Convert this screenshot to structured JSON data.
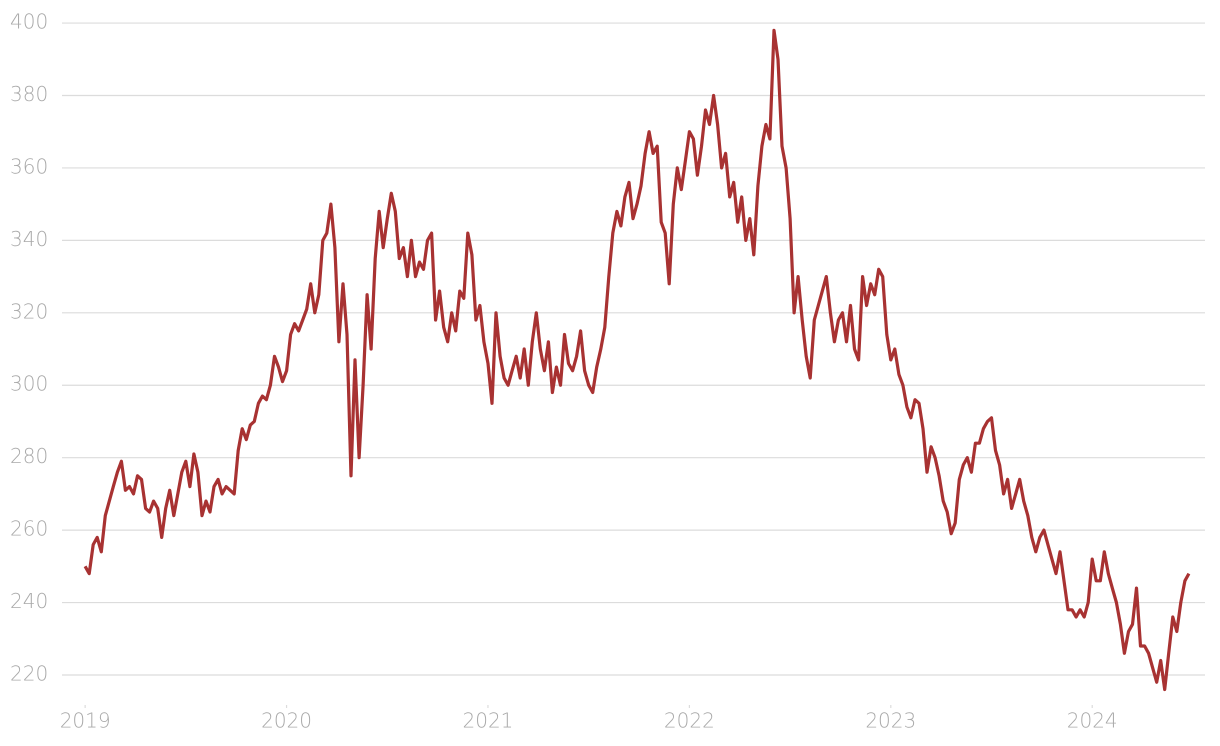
{
  "chart_data": {
    "type": "line",
    "x": [
      2019.0,
      2019.02,
      2019.04,
      2019.06,
      2019.08,
      2019.1,
      2019.12,
      2019.14,
      2019.16,
      2019.18,
      2019.2,
      2019.22,
      2019.24,
      2019.26,
      2019.28,
      2019.3,
      2019.32,
      2019.34,
      2019.36,
      2019.38,
      2019.4,
      2019.42,
      2019.44,
      2019.46,
      2019.48,
      2019.5,
      2019.52,
      2019.54,
      2019.56,
      2019.58,
      2019.6,
      2019.62,
      2019.64,
      2019.66,
      2019.68,
      2019.7,
      2019.72,
      2019.74,
      2019.76,
      2019.78,
      2019.8,
      2019.82,
      2019.84,
      2019.86,
      2019.88,
      2019.9,
      2019.92,
      2019.94,
      2019.96,
      2019.98,
      2020.0,
      2020.02,
      2020.04,
      2020.06,
      2020.08,
      2020.1,
      2020.12,
      2020.14,
      2020.16,
      2020.18,
      2020.2,
      2020.22,
      2020.24,
      2020.26,
      2020.28,
      2020.3,
      2020.32,
      2020.34,
      2020.36,
      2020.38,
      2020.4,
      2020.42,
      2020.44,
      2020.46,
      2020.48,
      2020.5,
      2020.52,
      2020.54,
      2020.56,
      2020.58,
      2020.6,
      2020.62,
      2020.64,
      2020.66,
      2020.68,
      2020.7,
      2020.72,
      2020.74,
      2020.76,
      2020.78,
      2020.8,
      2020.82,
      2020.84,
      2020.86,
      2020.88,
      2020.9,
      2020.92,
      2020.94,
      2020.96,
      2020.98,
      2021.0,
      2021.02,
      2021.04,
      2021.06,
      2021.08,
      2021.1,
      2021.12,
      2021.14,
      2021.16,
      2021.18,
      2021.2,
      2021.22,
      2021.24,
      2021.26,
      2021.28,
      2021.3,
      2021.32,
      2021.34,
      2021.36,
      2021.38,
      2021.4,
      2021.42,
      2021.44,
      2021.46,
      2021.48,
      2021.5,
      2021.52,
      2021.54,
      2021.56,
      2021.58,
      2021.6,
      2021.62,
      2021.64,
      2021.66,
      2021.68,
      2021.7,
      2021.72,
      2021.74,
      2021.76,
      2021.78,
      2021.8,
      2021.82,
      2021.84,
      2021.86,
      2021.88,
      2021.9,
      2021.92,
      2021.94,
      2021.96,
      2021.98,
      2022.0,
      2022.02,
      2022.04,
      2022.06,
      2022.08,
      2022.1,
      2022.12,
      2022.14,
      2022.16,
      2022.18,
      2022.2,
      2022.22,
      2022.24,
      2022.26,
      2022.28,
      2022.3,
      2022.32,
      2022.34,
      2022.36,
      2022.38,
      2022.4,
      2022.42,
      2022.44,
      2022.46,
      2022.48,
      2022.5,
      2022.52,
      2022.54,
      2022.56,
      2022.58,
      2022.6,
      2022.62,
      2022.64,
      2022.66,
      2022.68,
      2022.7,
      2022.72,
      2022.74,
      2022.76,
      2022.78,
      2022.8,
      2022.82,
      2022.84,
      2022.86,
      2022.88,
      2022.9,
      2022.92,
      2022.94,
      2022.96,
      2022.98,
      2023.0,
      2023.02,
      2023.04,
      2023.06,
      2023.08,
      2023.1,
      2023.12,
      2023.14,
      2023.16,
      2023.18,
      2023.2,
      2023.22,
      2023.24,
      2023.26,
      2023.28,
      2023.3,
      2023.32,
      2023.34,
      2023.36,
      2023.38,
      2023.4,
      2023.42,
      2023.44,
      2023.46,
      2023.48,
      2023.5,
      2023.52,
      2023.54,
      2023.56,
      2023.58,
      2023.6,
      2023.62,
      2023.64,
      2023.66,
      2023.68,
      2023.7,
      2023.72,
      2023.74,
      2023.76,
      2023.78,
      2023.8,
      2023.82,
      2023.84,
      2023.86,
      2023.88,
      2023.9,
      2023.92,
      2023.94,
      2023.96,
      2023.98,
      2024.0,
      2024.02,
      2024.04,
      2024.06,
      2024.08,
      2024.1,
      2024.12,
      2024.14,
      2024.16,
      2024.18,
      2024.2,
      2024.22,
      2024.24,
      2024.26,
      2024.28,
      2024.3,
      2024.32,
      2024.34,
      2024.36,
      2024.38,
      2024.4,
      2024.42,
      2024.44,
      2024.46,
      2024.48
    ],
    "series": [
      {
        "color": "#a83232",
        "values": [
          250,
          248,
          256,
          258,
          254,
          264,
          268,
          272,
          276,
          279,
          271,
          272,
          270,
          275,
          274,
          266,
          265,
          268,
          266,
          258,
          266,
          271,
          264,
          270,
          276,
          279,
          272,
          281,
          276,
          264,
          268,
          265,
          272,
          274,
          270,
          272,
          271,
          270,
          282,
          288,
          285,
          289,
          290,
          295,
          297,
          296,
          300,
          308,
          305,
          301,
          304,
          314,
          317,
          315,
          318,
          321,
          328,
          320,
          325,
          340,
          342,
          350,
          338,
          312,
          328,
          314,
          275,
          307,
          280,
          300,
          325,
          310,
          335,
          348,
          338,
          346,
          353,
          348,
          335,
          338,
          330,
          340,
          330,
          334,
          332,
          340,
          342,
          318,
          326,
          316,
          312,
          320,
          315,
          326,
          324,
          342,
          336,
          318,
          322,
          312,
          306,
          295,
          320,
          308,
          302,
          300,
          304,
          308,
          302,
          310,
          300,
          312,
          320,
          310,
          304,
          312,
          298,
          305,
          300,
          314,
          306,
          304,
          308,
          315,
          304,
          300,
          298,
          305,
          310,
          316,
          330,
          342,
          348,
          344,
          352,
          356,
          346,
          350,
          355,
          364,
          370,
          364,
          366,
          345,
          342,
          328,
          350,
          360,
          354,
          362,
          370,
          368,
          358,
          366,
          376,
          372,
          380,
          372,
          360,
          364,
          352,
          356,
          345,
          352,
          340,
          346,
          336,
          355,
          366,
          372,
          368,
          398,
          390,
          366,
          360,
          346,
          320,
          330,
          318,
          308,
          302,
          318,
          322,
          326,
          330,
          320,
          312,
          318,
          320,
          312,
          322,
          310,
          307,
          330,
          322,
          328,
          325,
          332,
          330,
          314,
          307,
          310,
          303,
          300,
          294,
          291,
          296,
          295,
          288,
          276,
          283,
          280,
          275,
          268,
          265,
          259,
          262,
          274,
          278,
          280,
          276,
          284,
          284,
          288,
          290,
          291,
          282,
          278,
          270,
          274,
          266,
          270,
          274,
          268,
          264,
          258,
          254,
          258,
          260,
          256,
          252,
          248,
          254,
          246,
          238,
          238,
          236,
          238,
          236,
          240,
          252,
          246,
          246,
          254,
          248,
          244,
          240,
          234,
          226,
          232,
          234,
          244,
          228,
          228,
          226,
          222,
          218,
          224,
          216,
          226,
          236,
          232,
          240,
          246,
          248
        ]
      }
    ],
    "xlim": [
      2018.9,
      2024.56
    ],
    "xticks": [
      2019,
      2020,
      2021,
      2022,
      2023,
      2024
    ],
    "ylim": [
      210,
      402
    ],
    "yticks": [
      220,
      240,
      260,
      280,
      300,
      320,
      340,
      360,
      380,
      400
    ],
    "grid": true
  }
}
